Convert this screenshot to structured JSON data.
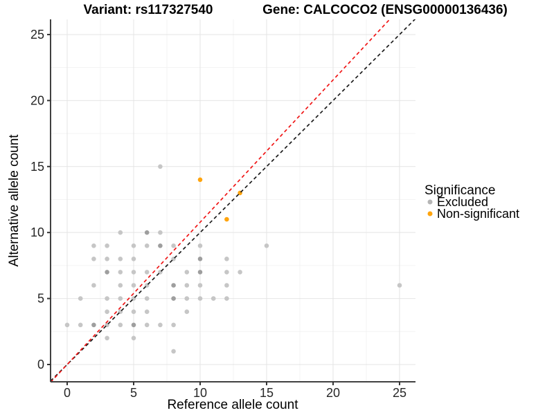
{
  "chart_data": {
    "type": "scatter",
    "titles": {
      "left": "Variant: rs117327540",
      "right": "Gene: CALCOCO2 (ENSG00000136436)"
    },
    "xlabel": "Reference allele count",
    "ylabel": "Alternative allele count",
    "xlim": [
      -1.25,
      26.2
    ],
    "ylim": [
      -1.31,
      26.15
    ],
    "xticks": [
      0,
      5,
      10,
      15,
      20,
      25
    ],
    "yticks": [
      0,
      5,
      10,
      15,
      20,
      25
    ],
    "minor_tick_step": 2.5,
    "grid": {
      "major_color": "#e4e4e4",
      "minor_color": "#f3f3f3"
    },
    "axis_color": "#404040",
    "tick_color": "#333333",
    "series": [
      {
        "name": "Excluded",
        "color": "#b5b5b5",
        "point_color": "#c6c6c6",
        "point_color_dark": "#9e9e9e",
        "points": [
          [
            0,
            3
          ],
          [
            1,
            3
          ],
          [
            1,
            5
          ],
          [
            2,
            3,
            1
          ],
          [
            2,
            6
          ],
          [
            2,
            8
          ],
          [
            2,
            9
          ],
          [
            3,
            2
          ],
          [
            3,
            3
          ],
          [
            3,
            4
          ],
          [
            3,
            5
          ],
          [
            3,
            7,
            1
          ],
          [
            3,
            8
          ],
          [
            3,
            9
          ],
          [
            4,
            3
          ],
          [
            4,
            4
          ],
          [
            4,
            5
          ],
          [
            4,
            6
          ],
          [
            4,
            7
          ],
          [
            4,
            8
          ],
          [
            4,
            10
          ],
          [
            5,
            2
          ],
          [
            5,
            3,
            1
          ],
          [
            5,
            4
          ],
          [
            5,
            5
          ],
          [
            5,
            6
          ],
          [
            5,
            7
          ],
          [
            5,
            8
          ],
          [
            5,
            9
          ],
          [
            6,
            3
          ],
          [
            6,
            4
          ],
          [
            6,
            5
          ],
          [
            6,
            6
          ],
          [
            6,
            7
          ],
          [
            6,
            9
          ],
          [
            6,
            10,
            1
          ],
          [
            7,
            3
          ],
          [
            7,
            7
          ],
          [
            7,
            9,
            1
          ],
          [
            7,
            10
          ],
          [
            7,
            15
          ],
          [
            8,
            1
          ],
          [
            8,
            3
          ],
          [
            8,
            5,
            1
          ],
          [
            8,
            6,
            1
          ],
          [
            8,
            8
          ],
          [
            8,
            9
          ],
          [
            9,
            4
          ],
          [
            9,
            5
          ],
          [
            9,
            6
          ],
          [
            9,
            7
          ],
          [
            10,
            5
          ],
          [
            10,
            6
          ],
          [
            10,
            7,
            1
          ],
          [
            10,
            8,
            1
          ],
          [
            10,
            9
          ],
          [
            11,
            5
          ],
          [
            12,
            5
          ],
          [
            12,
            6
          ],
          [
            12,
            7
          ],
          [
            12,
            8
          ],
          [
            13,
            7
          ],
          [
            15,
            9
          ],
          [
            25,
            6
          ]
        ]
      },
      {
        "name": "Non-significant",
        "color": "#ffa40d",
        "point_color": "#ffa40d",
        "points": [
          [
            10,
            14
          ],
          [
            12,
            11
          ],
          [
            13,
            13
          ]
        ]
      }
    ],
    "ablines": [
      {
        "name": "identity-line",
        "slope": 1,
        "intercept": 0,
        "color": "#1a1a1a",
        "dash": "5 4"
      },
      {
        "name": "fitted-line",
        "slope": 1.078,
        "intercept": 0,
        "color": "#f01414",
        "dash": "5 4"
      }
    ],
    "legend": {
      "title": "Significance",
      "items": [
        {
          "label": "Excluded",
          "color": "#b5b5b5"
        },
        {
          "label": "Non-significant",
          "color": "#ffa40d"
        }
      ]
    }
  }
}
